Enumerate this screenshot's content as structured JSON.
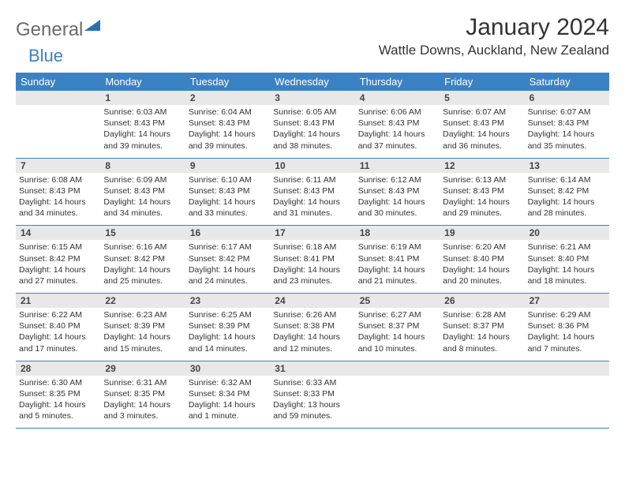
{
  "logo": {
    "text1": "General",
    "text2": "Blue",
    "shape_color": "#2a6fb0"
  },
  "title": "January 2024",
  "location": "Wattle Downs, Auckland, New Zealand",
  "colors": {
    "header_bg": "#3b82c4",
    "header_text": "#ffffff",
    "daynum_bg": "#e8e8e8",
    "week_border": "#3b82c4",
    "body_text": "#333333"
  },
  "day_names": [
    "Sunday",
    "Monday",
    "Tuesday",
    "Wednesday",
    "Thursday",
    "Friday",
    "Saturday"
  ],
  "weeks": [
    [
      null,
      {
        "n": "1",
        "sr": "6:03 AM",
        "ss": "8:43 PM",
        "dl": "14 hours and 39 minutes."
      },
      {
        "n": "2",
        "sr": "6:04 AM",
        "ss": "8:43 PM",
        "dl": "14 hours and 39 minutes."
      },
      {
        "n": "3",
        "sr": "6:05 AM",
        "ss": "8:43 PM",
        "dl": "14 hours and 38 minutes."
      },
      {
        "n": "4",
        "sr": "6:06 AM",
        "ss": "8:43 PM",
        "dl": "14 hours and 37 minutes."
      },
      {
        "n": "5",
        "sr": "6:07 AM",
        "ss": "8:43 PM",
        "dl": "14 hours and 36 minutes."
      },
      {
        "n": "6",
        "sr": "6:07 AM",
        "ss": "8:43 PM",
        "dl": "14 hours and 35 minutes."
      }
    ],
    [
      {
        "n": "7",
        "sr": "6:08 AM",
        "ss": "8:43 PM",
        "dl": "14 hours and 34 minutes."
      },
      {
        "n": "8",
        "sr": "6:09 AM",
        "ss": "8:43 PM",
        "dl": "14 hours and 34 minutes."
      },
      {
        "n": "9",
        "sr": "6:10 AM",
        "ss": "8:43 PM",
        "dl": "14 hours and 33 minutes."
      },
      {
        "n": "10",
        "sr": "6:11 AM",
        "ss": "8:43 PM",
        "dl": "14 hours and 31 minutes."
      },
      {
        "n": "11",
        "sr": "6:12 AM",
        "ss": "8:43 PM",
        "dl": "14 hours and 30 minutes."
      },
      {
        "n": "12",
        "sr": "6:13 AM",
        "ss": "8:43 PM",
        "dl": "14 hours and 29 minutes."
      },
      {
        "n": "13",
        "sr": "6:14 AM",
        "ss": "8:42 PM",
        "dl": "14 hours and 28 minutes."
      }
    ],
    [
      {
        "n": "14",
        "sr": "6:15 AM",
        "ss": "8:42 PM",
        "dl": "14 hours and 27 minutes."
      },
      {
        "n": "15",
        "sr": "6:16 AM",
        "ss": "8:42 PM",
        "dl": "14 hours and 25 minutes."
      },
      {
        "n": "16",
        "sr": "6:17 AM",
        "ss": "8:42 PM",
        "dl": "14 hours and 24 minutes."
      },
      {
        "n": "17",
        "sr": "6:18 AM",
        "ss": "8:41 PM",
        "dl": "14 hours and 23 minutes."
      },
      {
        "n": "18",
        "sr": "6:19 AM",
        "ss": "8:41 PM",
        "dl": "14 hours and 21 minutes."
      },
      {
        "n": "19",
        "sr": "6:20 AM",
        "ss": "8:40 PM",
        "dl": "14 hours and 20 minutes."
      },
      {
        "n": "20",
        "sr": "6:21 AM",
        "ss": "8:40 PM",
        "dl": "14 hours and 18 minutes."
      }
    ],
    [
      {
        "n": "21",
        "sr": "6:22 AM",
        "ss": "8:40 PM",
        "dl": "14 hours and 17 minutes."
      },
      {
        "n": "22",
        "sr": "6:23 AM",
        "ss": "8:39 PM",
        "dl": "14 hours and 15 minutes."
      },
      {
        "n": "23",
        "sr": "6:25 AM",
        "ss": "8:39 PM",
        "dl": "14 hours and 14 minutes."
      },
      {
        "n": "24",
        "sr": "6:26 AM",
        "ss": "8:38 PM",
        "dl": "14 hours and 12 minutes."
      },
      {
        "n": "25",
        "sr": "6:27 AM",
        "ss": "8:37 PM",
        "dl": "14 hours and 10 minutes."
      },
      {
        "n": "26",
        "sr": "6:28 AM",
        "ss": "8:37 PM",
        "dl": "14 hours and 8 minutes."
      },
      {
        "n": "27",
        "sr": "6:29 AM",
        "ss": "8:36 PM",
        "dl": "14 hours and 7 minutes."
      }
    ],
    [
      {
        "n": "28",
        "sr": "6:30 AM",
        "ss": "8:35 PM",
        "dl": "14 hours and 5 minutes."
      },
      {
        "n": "29",
        "sr": "6:31 AM",
        "ss": "8:35 PM",
        "dl": "14 hours and 3 minutes."
      },
      {
        "n": "30",
        "sr": "6:32 AM",
        "ss": "8:34 PM",
        "dl": "14 hours and 1 minute."
      },
      {
        "n": "31",
        "sr": "6:33 AM",
        "ss": "8:33 PM",
        "dl": "13 hours and 59 minutes."
      },
      null,
      null,
      null
    ]
  ],
  "labels": {
    "sunrise": "Sunrise:",
    "sunset": "Sunset:",
    "daylight": "Daylight:"
  }
}
